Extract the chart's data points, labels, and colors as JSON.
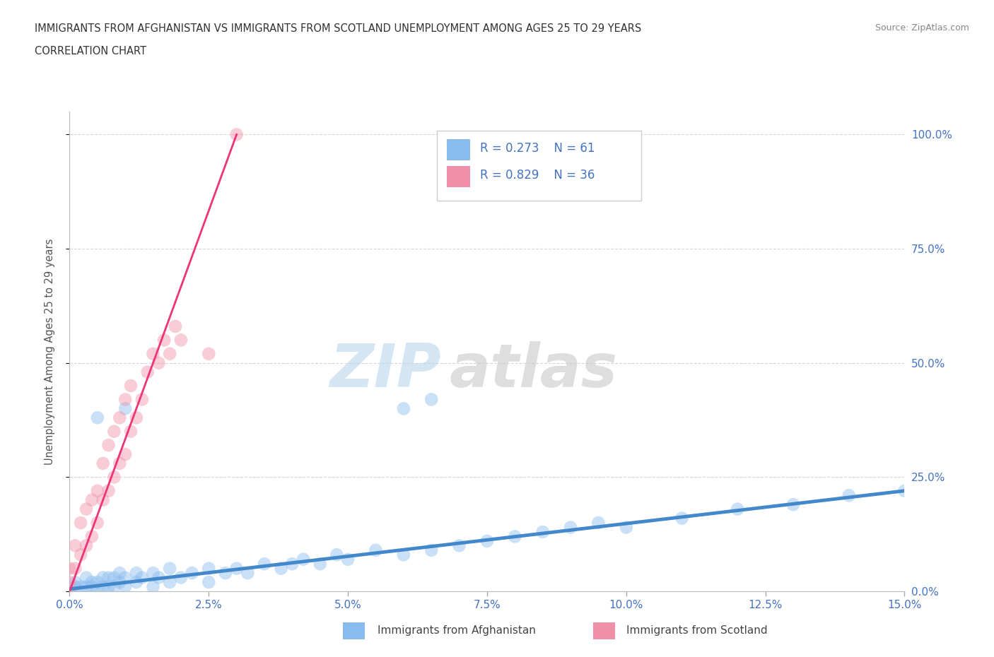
{
  "title_line1": "IMMIGRANTS FROM AFGHANISTAN VS IMMIGRANTS FROM SCOTLAND UNEMPLOYMENT AMONG AGES 25 TO 29 YEARS",
  "title_line2": "CORRELATION CHART",
  "source_text": "Source: ZipAtlas.com",
  "xlabel_ticks": [
    "0.0%",
    "2.5%",
    "5.0%",
    "7.5%",
    "10.0%",
    "12.5%",
    "15.0%"
  ],
  "ylabel_ticks_left": [
    "",
    "",
    "",
    "",
    ""
  ],
  "ylabel_ticks_right": [
    "100.0%",
    "75.0%",
    "50.0%",
    "25.0%",
    "0.0%"
  ],
  "ylabel_label": "Unemployment Among Ages 25 to 29 years",
  "watermark_zip": "ZIP",
  "watermark_atlas": "atlas",
  "afghanistan_color": "#88bbee",
  "scotland_color": "#f090a8",
  "afghanistan_line_color": "#4488cc",
  "scotland_line_color": "#ee3377",
  "background_color": "#ffffff",
  "grid_color": "#cccccc",
  "title_color": "#333333",
  "tick_color": "#4472c4",
  "xmin": 0.0,
  "xmax": 0.15,
  "ymin": 0.0,
  "ymax": 1.05,
  "afghanistan_scatter_x": [
    0.0,
    0.001,
    0.001,
    0.002,
    0.003,
    0.003,
    0.004,
    0.004,
    0.005,
    0.005,
    0.006,
    0.006,
    0.007,
    0.007,
    0.008,
    0.008,
    0.009,
    0.009,
    0.01,
    0.01,
    0.012,
    0.012,
    0.013,
    0.015,
    0.015,
    0.016,
    0.018,
    0.018,
    0.02,
    0.022,
    0.025,
    0.025,
    0.028,
    0.03,
    0.032,
    0.035,
    0.038,
    0.04,
    0.042,
    0.045,
    0.048,
    0.05,
    0.055,
    0.06,
    0.065,
    0.07,
    0.075,
    0.08,
    0.085,
    0.09,
    0.095,
    0.1,
    0.11,
    0.12,
    0.13,
    0.14,
    0.15,
    0.005,
    0.01,
    0.06,
    0.065
  ],
  "afghanistan_scatter_y": [
    0.0,
    0.01,
    0.02,
    0.01,
    0.01,
    0.03,
    0.01,
    0.02,
    0.0,
    0.02,
    0.01,
    0.03,
    0.01,
    0.03,
    0.01,
    0.03,
    0.02,
    0.04,
    0.01,
    0.03,
    0.02,
    0.04,
    0.03,
    0.01,
    0.04,
    0.03,
    0.02,
    0.05,
    0.03,
    0.04,
    0.02,
    0.05,
    0.04,
    0.05,
    0.04,
    0.06,
    0.05,
    0.06,
    0.07,
    0.06,
    0.08,
    0.07,
    0.09,
    0.08,
    0.09,
    0.1,
    0.11,
    0.12,
    0.13,
    0.14,
    0.15,
    0.14,
    0.16,
    0.18,
    0.19,
    0.21,
    0.22,
    0.38,
    0.4,
    0.4,
    0.42
  ],
  "scotland_scatter_x": [
    0.0,
    0.0,
    0.0,
    0.001,
    0.001,
    0.002,
    0.002,
    0.003,
    0.003,
    0.004,
    0.004,
    0.005,
    0.005,
    0.006,
    0.006,
    0.007,
    0.007,
    0.008,
    0.008,
    0.009,
    0.009,
    0.01,
    0.01,
    0.011,
    0.011,
    0.012,
    0.013,
    0.014,
    0.015,
    0.016,
    0.017,
    0.018,
    0.019,
    0.02,
    0.025,
    0.03
  ],
  "scotland_scatter_y": [
    0.0,
    0.02,
    0.05,
    0.05,
    0.1,
    0.08,
    0.15,
    0.1,
    0.18,
    0.12,
    0.2,
    0.15,
    0.22,
    0.2,
    0.28,
    0.22,
    0.32,
    0.25,
    0.35,
    0.28,
    0.38,
    0.3,
    0.42,
    0.35,
    0.45,
    0.38,
    0.42,
    0.48,
    0.52,
    0.5,
    0.55,
    0.52,
    0.58,
    0.55,
    0.52,
    1.0
  ],
  "afghanistan_trend_x": [
    0.0,
    0.15
  ],
  "afghanistan_trend_y": [
    0.005,
    0.22
  ],
  "scotland_trend_x": [
    0.0,
    0.03
  ],
  "scotland_trend_y": [
    0.0,
    1.0
  ]
}
